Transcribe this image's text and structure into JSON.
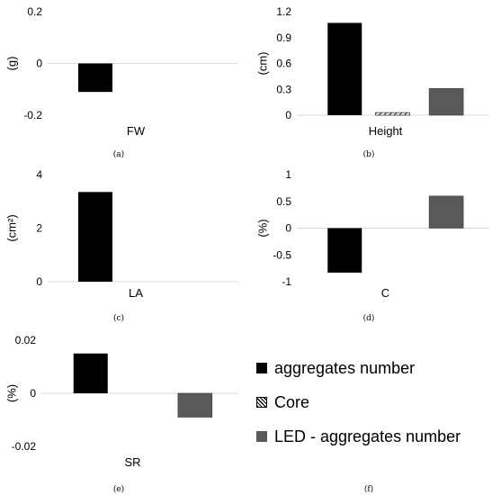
{
  "colors": {
    "aggregates": "#000000",
    "core": "#ffffff",
    "led": "#595959",
    "axis": "#d9d9d9",
    "text": "#000000"
  },
  "legend": {
    "items": [
      {
        "label": "aggregates number",
        "pattern": "solid-black"
      },
      {
        "label": "Core",
        "pattern": "diagonal-hatch"
      },
      {
        "label": "LED - aggregates number",
        "pattern": "solid-gray"
      }
    ]
  },
  "chart_data": [
    {
      "type": "bar",
      "panel_label": "(a)",
      "ylabel": "(g)",
      "category": "FW",
      "ylim": [
        -0.2,
        0.2
      ],
      "yticks": [
        "0.2",
        "0",
        "-0.2"
      ],
      "ytick_values": [
        0.2,
        0,
        -0.2
      ],
      "series": [
        {
          "name": "aggregates number",
          "value": -0.11
        },
        {
          "name": "Core",
          "value": 0
        },
        {
          "name": "LED - aggregates number",
          "value": 0
        }
      ]
    },
    {
      "type": "bar",
      "panel_label": "(b)",
      "ylabel": "(cm)",
      "category": "Height",
      "ylim": [
        0,
        1.2
      ],
      "yticks": [
        "1.2",
        "0.9",
        "0.6",
        "0.3",
        "0"
      ],
      "ytick_values": [
        1.2,
        0.9,
        0.6,
        0.3,
        0
      ],
      "series": [
        {
          "name": "aggregates number",
          "value": 1.07
        },
        {
          "name": "Core",
          "value": 0.03
        },
        {
          "name": "LED - aggregates number",
          "value": 0.31
        }
      ]
    },
    {
      "type": "bar",
      "panel_label": "(c)",
      "ylabel": "(cm²)",
      "category": "LA",
      "ylim": [
        0,
        4
      ],
      "yticks": [
        "4",
        "2",
        "0"
      ],
      "ytick_values": [
        4,
        2,
        0
      ],
      "series": [
        {
          "name": "aggregates number",
          "value": 3.35
        },
        {
          "name": "Core",
          "value": 0
        },
        {
          "name": "LED - aggregates number",
          "value": 0
        }
      ]
    },
    {
      "type": "bar",
      "panel_label": "(d)",
      "ylabel": "(%)",
      "category": "C",
      "ylim": [
        -1,
        1
      ],
      "yticks": [
        "1",
        "0.5",
        "0",
        "-0.5",
        "-1"
      ],
      "ytick_values": [
        1,
        0.5,
        0,
        -0.5,
        -1
      ],
      "series": [
        {
          "name": "aggregates number",
          "value": -0.83
        },
        {
          "name": "Core",
          "value": 0
        },
        {
          "name": "LED - aggregates number",
          "value": 0.6
        }
      ]
    },
    {
      "type": "bar",
      "panel_label": "(e)",
      "ylabel": "(%)",
      "category": "SR",
      "ylim": [
        -0.02,
        0.02
      ],
      "yticks": [
        "0.02",
        "0",
        "-0.02"
      ],
      "ytick_values": [
        0.02,
        0,
        -0.02
      ],
      "series": [
        {
          "name": "aggregates number",
          "value": 0.015
        },
        {
          "name": "Core",
          "value": 0
        },
        {
          "name": "LED - aggregates number",
          "value": -0.009
        }
      ]
    }
  ],
  "extra_panel_label": "(f)"
}
